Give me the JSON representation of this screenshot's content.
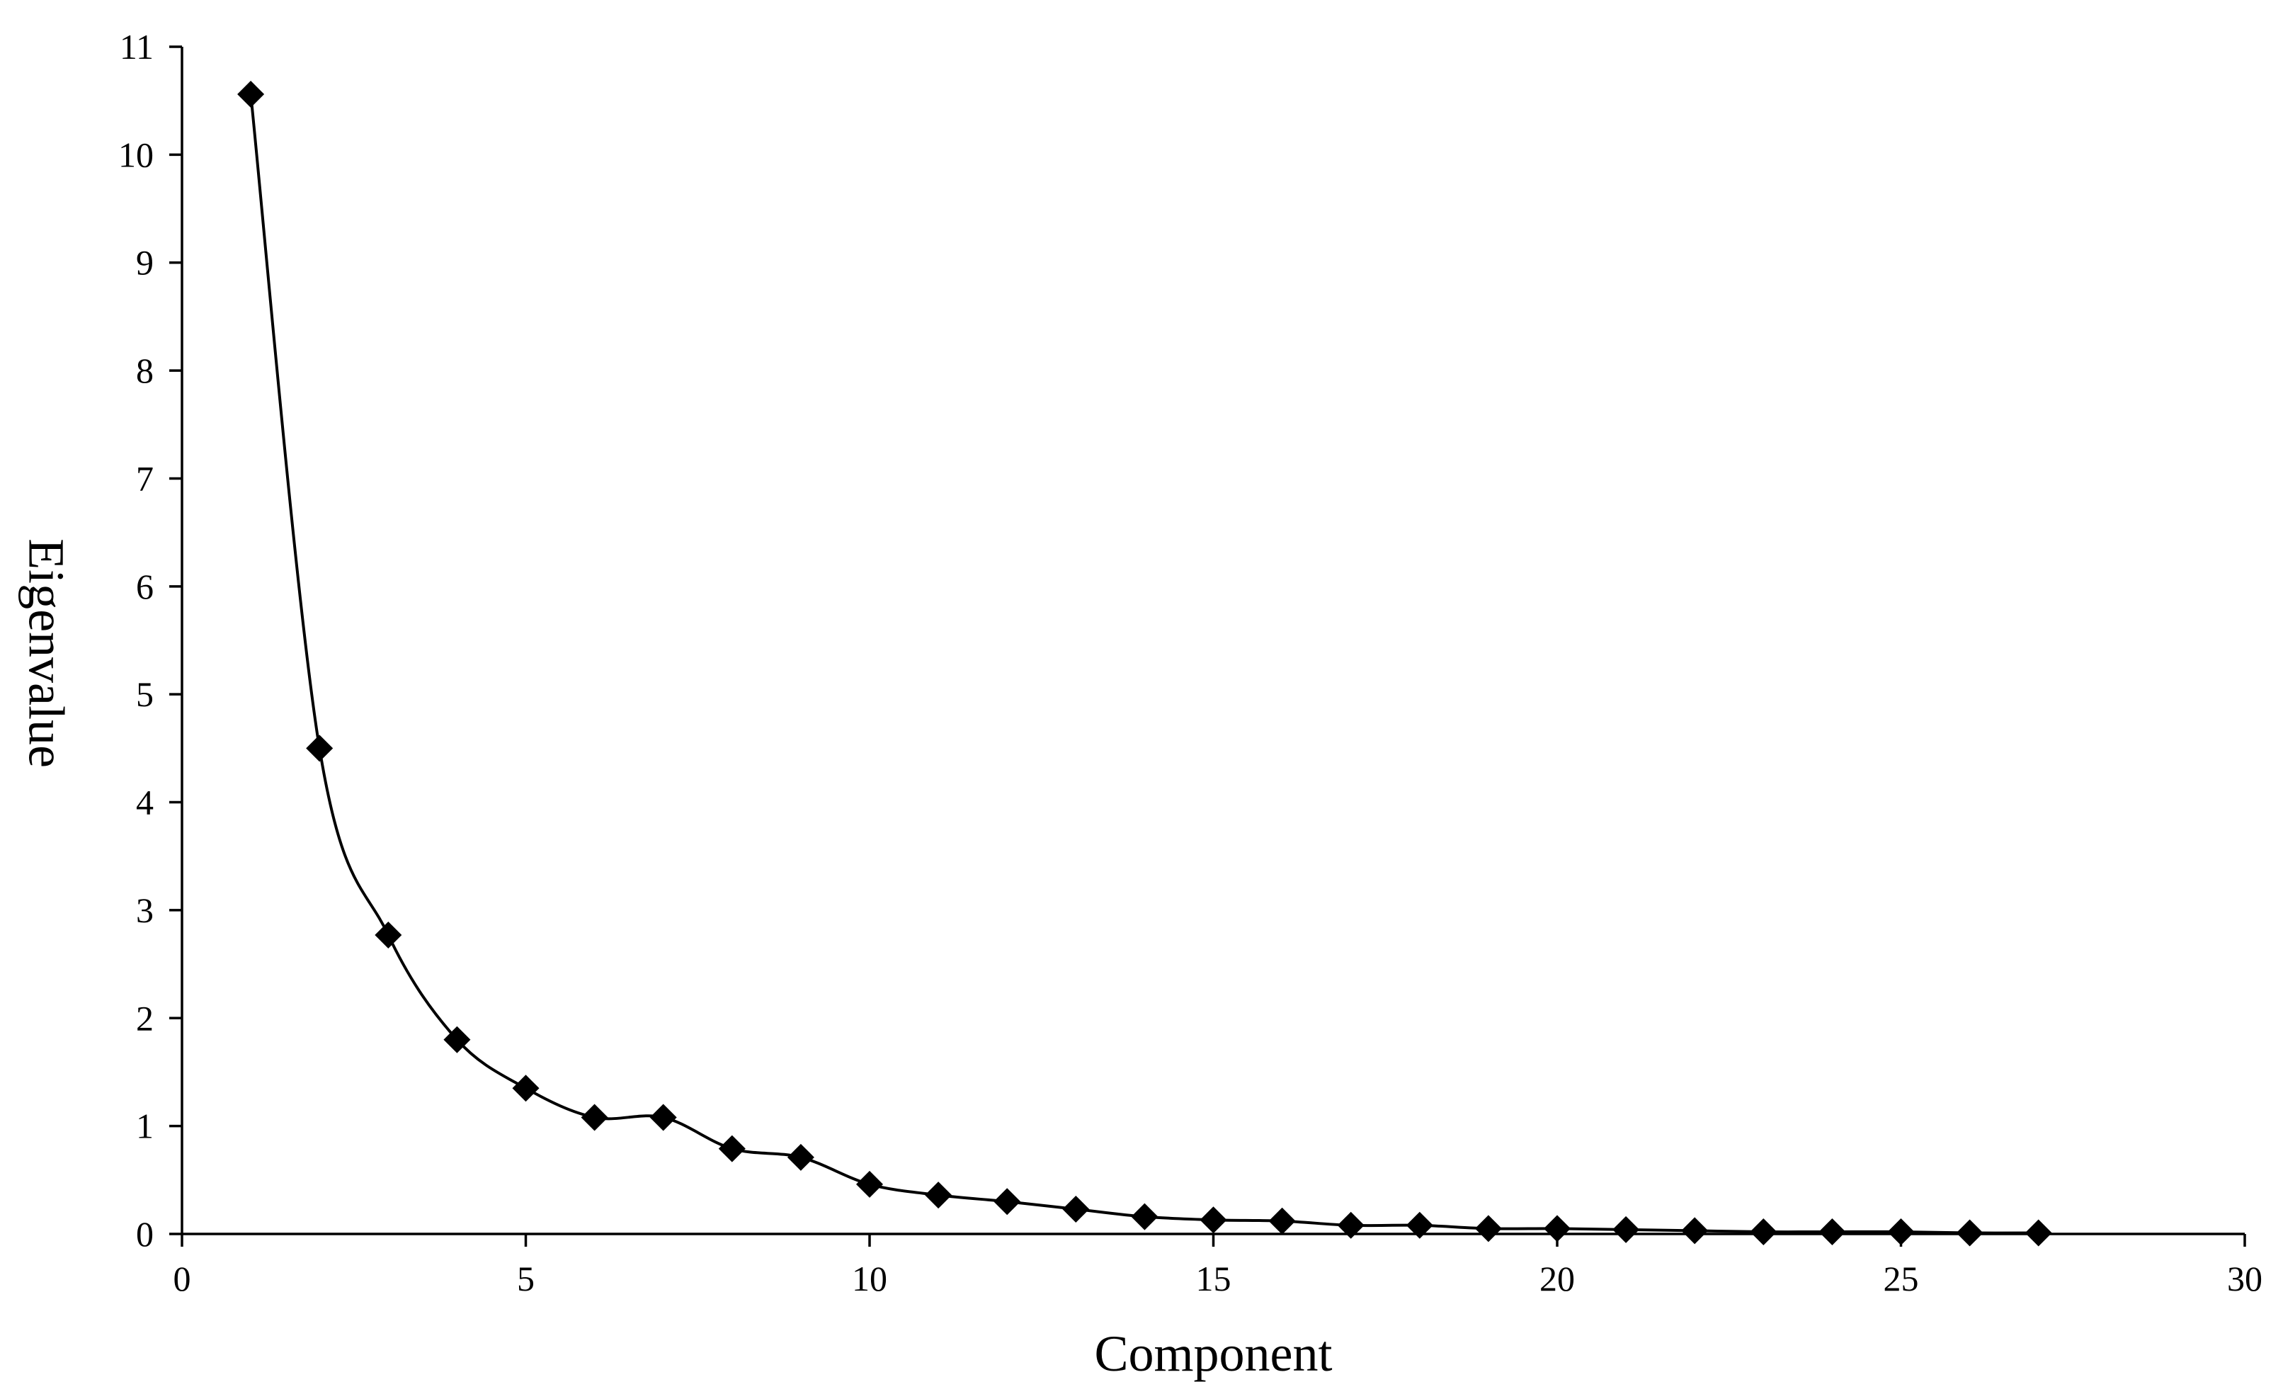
{
  "chart_data": {
    "type": "line",
    "title": "",
    "xlabel": "Component",
    "ylabel": "Eigenvalue",
    "xlim": [
      0,
      30
    ],
    "ylim": [
      0,
      11
    ],
    "xticks": [
      0,
      5,
      10,
      15,
      20,
      25,
      30
    ],
    "yticks": [
      0,
      1,
      2,
      3,
      4,
      5,
      6,
      7,
      8,
      9,
      10,
      11
    ],
    "grid": false,
    "legend": "none",
    "marker": "diamond",
    "line_style": "smooth",
    "color": "#000000",
    "series": [
      {
        "x": [
          1,
          2,
          3,
          4,
          5,
          6,
          7,
          8,
          9,
          10,
          11,
          12,
          13,
          14,
          15,
          16,
          17,
          18,
          19,
          20,
          21,
          22,
          23,
          24,
          25,
          26,
          27
        ],
        "values": [
          10.56,
          4.5,
          2.77,
          1.8,
          1.35,
          1.08,
          1.08,
          0.79,
          0.71,
          0.46,
          0.36,
          0.3,
          0.23,
          0.16,
          0.13,
          0.12,
          0.08,
          0.08,
          0.05,
          0.05,
          0.04,
          0.03,
          0.02,
          0.02,
          0.02,
          0.01,
          0.01
        ]
      }
    ]
  }
}
